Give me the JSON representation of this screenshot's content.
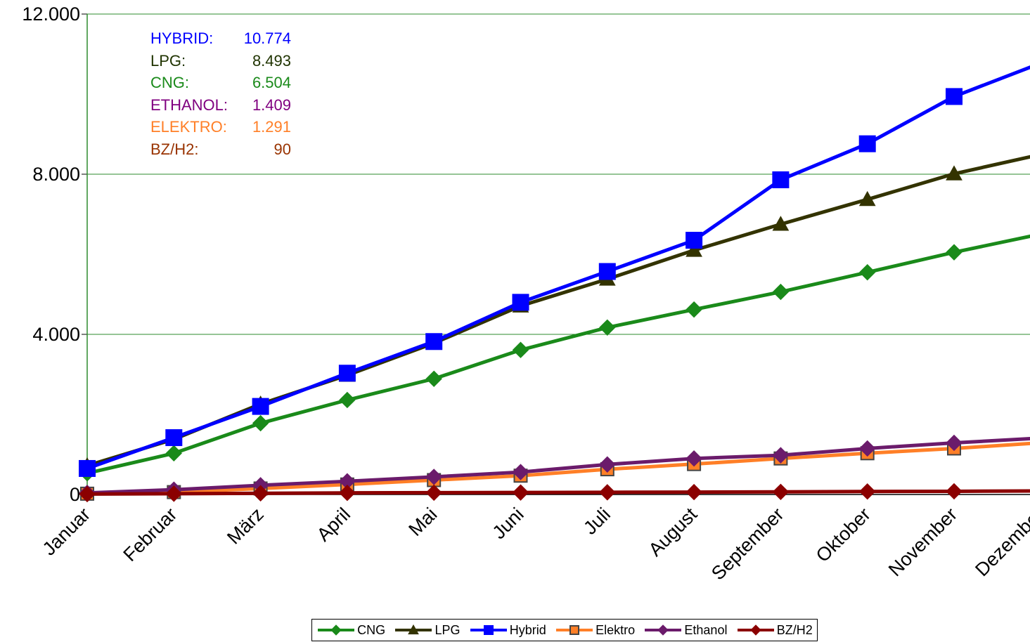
{
  "chart_data": {
    "type": "line",
    "categories": [
      "Januar",
      "Februar",
      "März",
      "April",
      "Mai",
      "Juni",
      "Juli",
      "August",
      "September",
      "Oktober",
      "November",
      "Dezember"
    ],
    "ylim": [
      0,
      12000
    ],
    "yticks": [
      0,
      4000,
      8000,
      12000
    ],
    "ytick_labels": [
      "0",
      "4.000",
      "8.000",
      "12.000"
    ],
    "grid": "horizontal",
    "legend_position": "bottom",
    "series": [
      {
        "name": "CNG",
        "color": "#1a8a1a",
        "marker": "diamond",
        "values": [
          530,
          1030,
          1780,
          2360,
          2890,
          3610,
          4170,
          4620,
          5060,
          5550,
          6050,
          6504
        ]
      },
      {
        "name": "LPG",
        "color": "#333300",
        "marker": "triangle",
        "values": [
          720,
          1380,
          2260,
          2980,
          3780,
          4710,
          5380,
          6100,
          6750,
          7370,
          8010,
          8493
        ]
      },
      {
        "name": "Hybrid",
        "color": "#0000ff",
        "marker": "square",
        "values": [
          650,
          1420,
          2200,
          3030,
          3820,
          4800,
          5570,
          6350,
          7860,
          8760,
          9940,
          10774
        ]
      },
      {
        "name": "Elektro",
        "color": "#ff7f27",
        "marker": "square-outline",
        "values": [
          20,
          60,
          150,
          250,
          360,
          470,
          630,
          760,
          900,
          1030,
          1150,
          1291
        ]
      },
      {
        "name": "Ethanol",
        "color": "#6b1b6b",
        "marker": "diamond",
        "values": [
          40,
          120,
          230,
          330,
          440,
          560,
          750,
          900,
          980,
          1150,
          1290,
          1409
        ]
      },
      {
        "name": "BZ/H2",
        "color": "#8b0000",
        "marker": "diamond",
        "values": [
          10,
          20,
          30,
          40,
          45,
          50,
          55,
          60,
          65,
          75,
          80,
          90
        ]
      }
    ]
  },
  "summary": [
    {
      "label": "HYBRID:",
      "value": "10.774",
      "color": "#0000ff"
    },
    {
      "label": "LPG:",
      "value": "8.493",
      "color": "#1f3300"
    },
    {
      "label": "CNG:",
      "value": "6.504",
      "color": "#1a8a1a"
    },
    {
      "label": "ETHANOL:",
      "value": "1.409",
      "color": "#800080"
    },
    {
      "label": "ELEKTRO:",
      "value": "1.291",
      "color": "#ff7f27"
    },
    {
      "label": "BZ/H2:",
      "value": "90",
      "color": "#993300"
    }
  ],
  "legend": [
    {
      "label": "CNG",
      "color": "#1a8a1a",
      "marker": "diamond"
    },
    {
      "label": "LPG",
      "color": "#333300",
      "marker": "triangle"
    },
    {
      "label": "Hybrid",
      "color": "#0000ff",
      "marker": "square"
    },
    {
      "label": "Elektro",
      "color": "#ff7f27",
      "marker": "square-outline"
    },
    {
      "label": "Ethanol",
      "color": "#6b1b6b",
      "marker": "diamond"
    },
    {
      "label": "BZ/H2",
      "color": "#8b0000",
      "marker": "diamond"
    }
  ]
}
